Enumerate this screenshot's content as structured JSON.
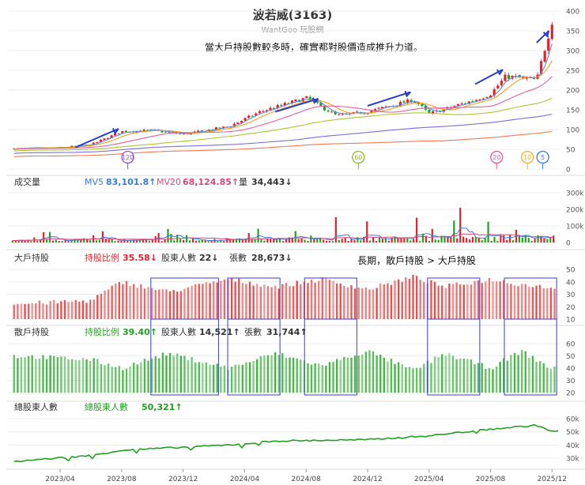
{
  "title": "波若威(3163)",
  "subtitle": "WantGoo 玩股網",
  "annotation_top": "當大戶持股數較多時，確實都對股價造成推升力道。",
  "annotation_mid": "長期，散戶持股 > 大戶持股",
  "markers": [
    "120",
    "60",
    "20",
    "10",
    "5"
  ],
  "volume_panel": {
    "label": "成交量",
    "mv5_label": "MV5",
    "mv5_value": "83,101.8↑",
    "mv20_label": "MV20",
    "mv20_value": "68,124.85↑",
    "qty_label": "量",
    "qty_value": "34,443↓"
  },
  "big_panel": {
    "label": "大戶持股",
    "ratio_label": "持股比例",
    "ratio_value": "35.58↓",
    "holders_label": "股東人數",
    "holders_value": "22↓",
    "shares_label": "張數",
    "shares_value": "28,673↓"
  },
  "retail_panel": {
    "label": "散戶持股",
    "ratio_label": "持股比例",
    "ratio_value": "39.40↑",
    "holders_label": "股東人數",
    "holders_value": "14,521↑",
    "shares_label": "張數",
    "shares_value": "31,744↑"
  },
  "total_panel": {
    "label": "總股東人數",
    "value_label": "總股東人數",
    "value": "50,321↑"
  },
  "x_axis": [
    "2023/04",
    "2023/08",
    "2023/12",
    "2024/04",
    "2024/08",
    "2024/12",
    "2025/04",
    "2025/08",
    "2025/12"
  ],
  "colors": {
    "up": "#e8202a",
    "down": "#21a021",
    "big_bar": "#e24a4a",
    "retail_bar": "#3db23d",
    "mv5": "#3a7bd5",
    "mv20": "#d9477a",
    "box": "#3b3bd4",
    "arrow": "#2c3fc4"
  },
  "chart_data": [
    {
      "type": "candlestick",
      "title": "波若威(3163)",
      "y_ticks": [
        "400",
        "350",
        "300",
        "250",
        "200",
        "150",
        "100",
        "50",
        "0"
      ],
      "ylim": [
        0,
        400
      ],
      "keypoints": [
        {
          "date": "2023/01",
          "close": 52
        },
        {
          "date": "2023/04",
          "close": 54
        },
        {
          "date": "2023/06",
          "close": 62
        },
        {
          "date": "2023/08",
          "close": 95
        },
        {
          "date": "2023/10",
          "close": 98
        },
        {
          "date": "2023/12",
          "close": 88
        },
        {
          "date": "2024/03",
          "close": 108
        },
        {
          "date": "2024/05",
          "close": 145
        },
        {
          "date": "2024/08",
          "close": 180
        },
        {
          "date": "2024/10",
          "close": 135
        },
        {
          "date": "2024/12",
          "close": 145
        },
        {
          "date": "2025/03",
          "close": 175
        },
        {
          "date": "2025/04",
          "close": 140
        },
        {
          "date": "2025/07",
          "close": 175
        },
        {
          "date": "2025/08",
          "close": 190
        },
        {
          "date": "2025/09",
          "close": 235
        },
        {
          "date": "2025/11",
          "close": 225
        },
        {
          "date": "2025/12",
          "close": 375
        }
      ]
    },
    {
      "type": "bar",
      "title": "成交量",
      "y_ticks": [
        "300k",
        "200k",
        "100k",
        "0"
      ],
      "ylim": [
        0,
        300000
      ],
      "series": [
        {
          "name": "MV5",
          "value": 83101.8
        },
        {
          "name": "MV20",
          "value": 68124.85
        },
        {
          "name": "量",
          "value": 34443
        }
      ]
    },
    {
      "type": "bar",
      "title": "大戶持股",
      "y_ticks": [
        "50",
        "40",
        "30",
        "20",
        "10"
      ],
      "ylim": [
        10,
        50
      ],
      "keypoints": [
        {
          "date": "2023/01",
          "value": 22
        },
        {
          "date": "2023/06",
          "value": 25
        },
        {
          "date": "2023/08",
          "value": 40
        },
        {
          "date": "2023/11",
          "value": 32
        },
        {
          "date": "2024/03",
          "value": 42
        },
        {
          "date": "2024/06",
          "value": 36
        },
        {
          "date": "2024/09",
          "value": 42
        },
        {
          "date": "2024/12",
          "value": 34
        },
        {
          "date": "2025/03",
          "value": 44
        },
        {
          "date": "2025/05",
          "value": 36
        },
        {
          "date": "2025/08",
          "value": 42
        },
        {
          "date": "2025/10",
          "value": 38
        },
        {
          "date": "2025/12",
          "value": 35.58
        }
      ]
    },
    {
      "type": "bar",
      "title": "散戶持股",
      "y_ticks": [
        "60",
        "50",
        "40",
        "30",
        "20"
      ],
      "ylim": [
        20,
        60
      ],
      "keypoints": [
        {
          "date": "2023/01",
          "value": 50
        },
        {
          "date": "2023/06",
          "value": 47
        },
        {
          "date": "2023/08",
          "value": 40
        },
        {
          "date": "2023/11",
          "value": 52
        },
        {
          "date": "2024/03",
          "value": 40
        },
        {
          "date": "2024/06",
          "value": 52
        },
        {
          "date": "2024/09",
          "value": 42
        },
        {
          "date": "2024/12",
          "value": 54
        },
        {
          "date": "2025/03",
          "value": 38
        },
        {
          "date": "2025/05",
          "value": 52
        },
        {
          "date": "2025/08",
          "value": 40
        },
        {
          "date": "2025/10",
          "value": 54
        },
        {
          "date": "2025/12",
          "value": 39.4
        }
      ]
    },
    {
      "type": "line",
      "title": "總股東人數",
      "y_ticks": [
        "60k",
        "50k",
        "40k",
        "30k"
      ],
      "ylim": [
        30000,
        60000
      ],
      "keypoints": [
        {
          "date": "2023/01",
          "value": 27500
        },
        {
          "date": "2023/06",
          "value": 32000
        },
        {
          "date": "2023/08",
          "value": 36000
        },
        {
          "date": "2024/03",
          "value": 40000
        },
        {
          "date": "2024/06",
          "value": 43000
        },
        {
          "date": "2024/12",
          "value": 44000
        },
        {
          "date": "2025/04",
          "value": 47000
        },
        {
          "date": "2025/08",
          "value": 52000
        },
        {
          "date": "2025/11",
          "value": 55000
        },
        {
          "date": "2025/12",
          "value": 50321
        }
      ]
    }
  ]
}
